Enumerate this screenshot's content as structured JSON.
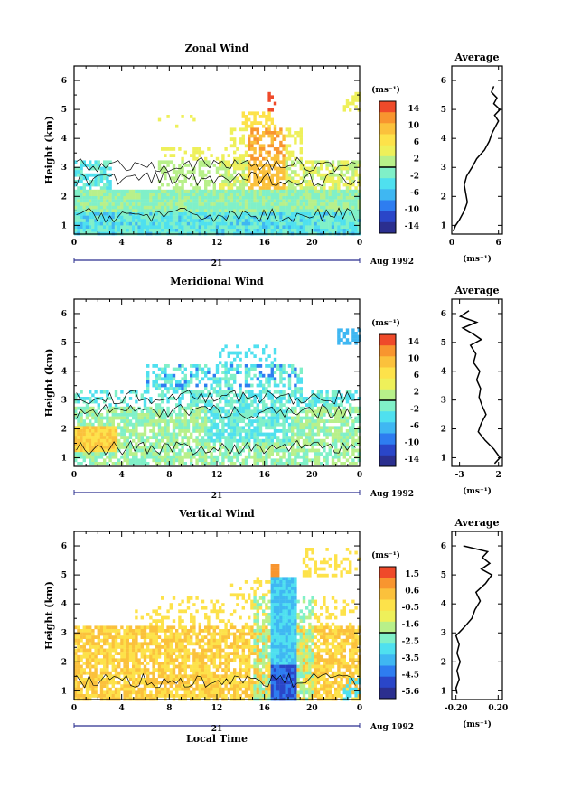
{
  "chart_data": [
    {
      "type": "heatmap",
      "title": "Zonal Wind",
      "xlabel": "",
      "ylabel": "Height (km)",
      "xlim": [
        0,
        24
      ],
      "ylim": [
        0.7,
        6.5
      ],
      "x_ticks": [
        "0",
        "4",
        "8",
        "12",
        "16",
        "20",
        "0"
      ],
      "y_ticks": [
        "1",
        "2",
        "3",
        "4",
        "5",
        "6"
      ],
      "date_label": "21",
      "month_label": "Aug 1992",
      "colorbar": {
        "unit": "(ms⁻¹)",
        "ticks": [
          "14",
          "10",
          "6",
          "2",
          "-2",
          "-6",
          "-10",
          "-14"
        ],
        "range": [
          -14,
          14
        ]
      },
      "average_profile": {
        "title": "Average",
        "xlabel": "(ms⁻¹)",
        "x_ticks": [
          "0",
          "6"
        ],
        "y_ticks": [
          "1",
          "2",
          "3",
          "4",
          "5",
          "6"
        ],
        "xlim": [
          0,
          6.5
        ],
        "heights": [
          0.8,
          1.0,
          1.2,
          1.5,
          1.8,
          2.1,
          2.4,
          2.7,
          3.0,
          3.3,
          3.6,
          3.9,
          4.2,
          4.4,
          4.6,
          4.8,
          5.0,
          5.2,
          5.4,
          5.6,
          5.8
        ],
        "values": [
          0.2,
          0.5,
          1.0,
          1.6,
          2.0,
          1.8,
          1.6,
          1.9,
          2.6,
          3.2,
          4.2,
          4.8,
          5.2,
          5.6,
          6.0,
          5.5,
          6.2,
          5.4,
          5.8,
          5.1,
          5.4
        ]
      }
    },
    {
      "type": "heatmap",
      "title": "Meridional Wind",
      "xlabel": "",
      "ylabel": "Height (km)",
      "xlim": [
        0,
        24
      ],
      "ylim": [
        0.7,
        6.5
      ],
      "x_ticks": [
        "0",
        "4",
        "8",
        "12",
        "16",
        "20",
        "0"
      ],
      "y_ticks": [
        "1",
        "2",
        "3",
        "4",
        "5",
        "6"
      ],
      "date_label": "21",
      "month_label": "Aug 1992",
      "colorbar": {
        "unit": "(ms⁻¹)",
        "ticks": [
          "14",
          "10",
          "6",
          "2",
          "-2",
          "-6",
          "-10",
          "-14"
        ],
        "range": [
          -14,
          14
        ]
      },
      "average_profile": {
        "title": "Average",
        "xlabel": "(ms⁻¹)",
        "x_ticks": [
          "-3",
          "2"
        ],
        "y_ticks": [
          "1",
          "2",
          "3",
          "4",
          "5",
          "6"
        ],
        "xlim": [
          -4,
          2.5
        ],
        "heights": [
          0.8,
          1.0,
          1.3,
          1.6,
          1.9,
          2.2,
          2.5,
          2.8,
          3.1,
          3.4,
          3.7,
          4.0,
          4.3,
          4.6,
          4.9,
          5.1,
          5.3,
          5.5,
          5.7,
          5.9,
          6.1
        ],
        "values": [
          1.5,
          2.2,
          1.4,
          0.3,
          -0.6,
          -0.2,
          0.4,
          -0.1,
          -0.5,
          -0.3,
          -0.8,
          -0.4,
          -1.2,
          -0.9,
          -1.6,
          -0.2,
          -1.3,
          -2.6,
          -0.8,
          -2.9,
          -1.8
        ]
      }
    },
    {
      "type": "heatmap",
      "title": "Vertical Wind",
      "xlabel": "Local Time",
      "ylabel": "Height (km)",
      "xlim": [
        0,
        24
      ],
      "ylim": [
        0.7,
        6.5
      ],
      "x_ticks": [
        "0",
        "4",
        "8",
        "12",
        "16",
        "20",
        "0"
      ],
      "y_ticks": [
        "1",
        "2",
        "3",
        "4",
        "5",
        "6"
      ],
      "date_label": "21",
      "month_label": "Aug 1992",
      "colorbar": {
        "unit": "(ms⁻¹)",
        "ticks": [
          "1.5",
          "0.6",
          "-0.5",
          "-1.6",
          "-2.5",
          "-3.5",
          "-4.5",
          "-5.6"
        ],
        "range": [
          -6.0,
          2.0
        ]
      },
      "average_profile": {
        "title": "Average",
        "xlabel": "(ms⁻¹)",
        "x_ticks": [
          "-0.20",
          "0.20"
        ],
        "y_ticks": [
          "1",
          "2",
          "3",
          "4",
          "5",
          "6"
        ],
        "xlim": [
          -0.24,
          0.24
        ],
        "heights": [
          0.9,
          1.1,
          1.4,
          1.7,
          2.0,
          2.3,
          2.6,
          2.9,
          3.2,
          3.5,
          3.8,
          4.1,
          4.4,
          4.7,
          5.0,
          5.2,
          5.4,
          5.6,
          5.8,
          6.0
        ],
        "values": [
          -0.19,
          -0.2,
          -0.17,
          -0.19,
          -0.16,
          -0.19,
          -0.17,
          -0.2,
          -0.12,
          -0.05,
          -0.02,
          0.03,
          -0.01,
          0.08,
          0.14,
          0.04,
          0.12,
          0.05,
          0.1,
          -0.13
        ]
      }
    }
  ],
  "colors": {
    "scale": [
      "#2b2f8f",
      "#2a46c8",
      "#2e7df0",
      "#3fb7f2",
      "#4fe0ef",
      "#80f0c8",
      "#b8f08a",
      "#eef05a",
      "#fde24a",
      "#fbc13c",
      "#f8952f",
      "#ef4a2a"
    ],
    "contour": "#000000"
  }
}
